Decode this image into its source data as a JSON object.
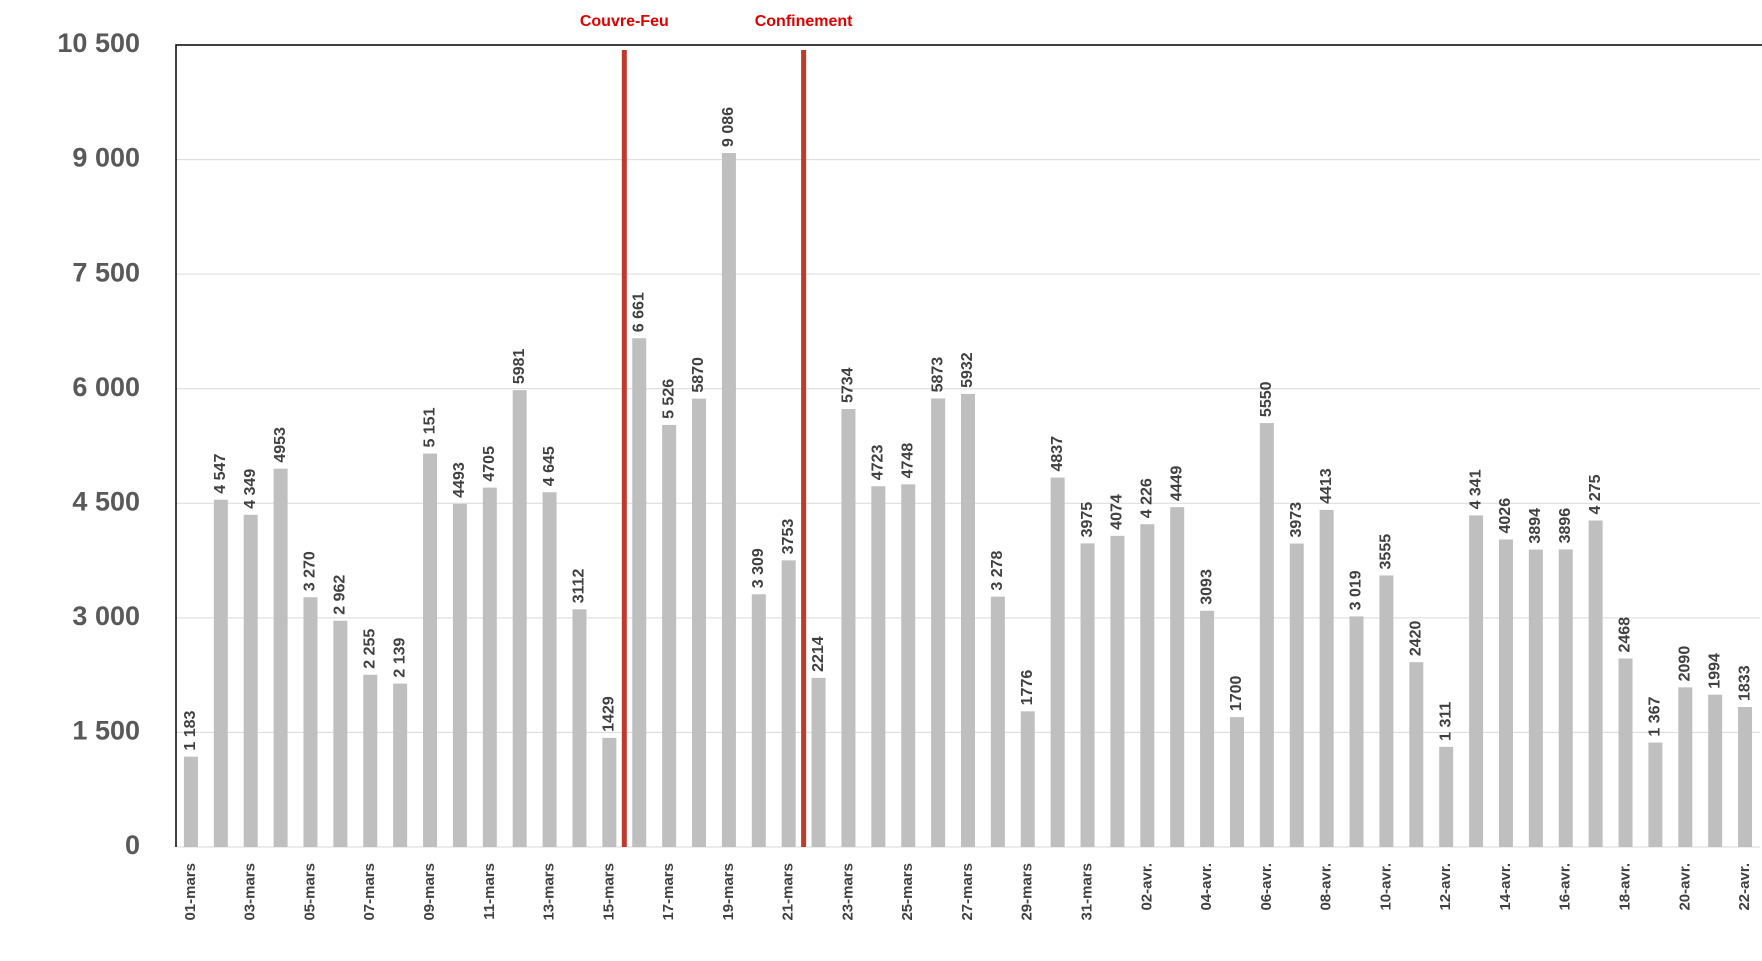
{
  "chart_data": {
    "type": "bar",
    "categories": [
      "01-mars",
      null,
      "03-mars",
      null,
      "05-mars",
      null,
      "07-mars",
      null,
      "09-mars",
      null,
      "11-mars",
      null,
      "13-mars",
      null,
      "15-mars",
      null,
      "17-mars",
      null,
      "19-mars",
      null,
      "21-mars",
      null,
      "23-mars",
      null,
      "25-mars",
      null,
      "27-mars",
      null,
      "29-mars",
      null,
      "31-mars",
      null,
      "02-avr.",
      null,
      "04-avr.",
      null,
      "06-avr.",
      null,
      "08-avr.",
      null,
      "10-avr.",
      null,
      "12-avr.",
      null,
      "14-avr.",
      null,
      "16-avr.",
      null,
      "18-avr.",
      null,
      "20-avr.",
      null,
      "22-avr."
    ],
    "values": [
      1183,
      4547,
      4349,
      4953,
      3270,
      2962,
      2255,
      2139,
      5151,
      4493,
      4705,
      5981,
      4645,
      3112,
      1429,
      6661,
      5526,
      5870,
      9086,
      3309,
      3753,
      2214,
      5734,
      4723,
      4748,
      5873,
      5932,
      3278,
      1776,
      4837,
      3975,
      4074,
      4226,
      4449,
      3093,
      1700,
      5550,
      3973,
      4413,
      3019,
      3555,
      2420,
      1311,
      4341,
      4026,
      3894,
      3896,
      4275,
      2468,
      1367,
      2090,
      1994,
      1833
    ],
    "value_labels": [
      "1 183",
      "4 547",
      "4 349",
      "4953",
      "3 270",
      "2 962",
      "2 255",
      "2 139",
      "5 151",
      "4493",
      "4705",
      "5981",
      "4 645",
      "3112",
      "1429",
      "6 661",
      "5 526",
      "5870",
      "9 086",
      "3 309",
      "3753",
      "2214",
      "5734",
      "4723",
      "4748",
      "5873",
      "5932",
      "3 278",
      "1776",
      "4837",
      "3975",
      "4074",
      "4 226",
      "4449",
      "3093",
      "1700",
      "5550",
      "3973",
      "4413",
      "3 019",
      "3555",
      "2420",
      "1 311",
      "4 341",
      "4026",
      "3894",
      "3896",
      "4 275",
      "2468",
      "1 367",
      "2090",
      "1994",
      "1833"
    ],
    "color": "#bfbfbf",
    "ylim": [
      0,
      10500
    ],
    "yticks": [
      0,
      {
        "value": 1500,
        "label": "1 500"
      },
      {
        "value": 3000,
        "label": "3 000"
      },
      {
        "value": 4500,
        "label": "4 500"
      },
      {
        "value": 6000,
        "label": "6 000"
      },
      {
        "value": 7500,
        "label": "7 500"
      },
      {
        "value": 9000,
        "label": "9 000"
      },
      {
        "value": 10500,
        "label": "10 500"
      }
    ],
    "grid": true,
    "annotations": [
      {
        "text": "Couvre-Feu",
        "x": 14.5,
        "color": "#c0392b"
      },
      {
        "text": "Confinement",
        "x": 20.5,
        "color": "#c0392b"
      }
    ]
  }
}
